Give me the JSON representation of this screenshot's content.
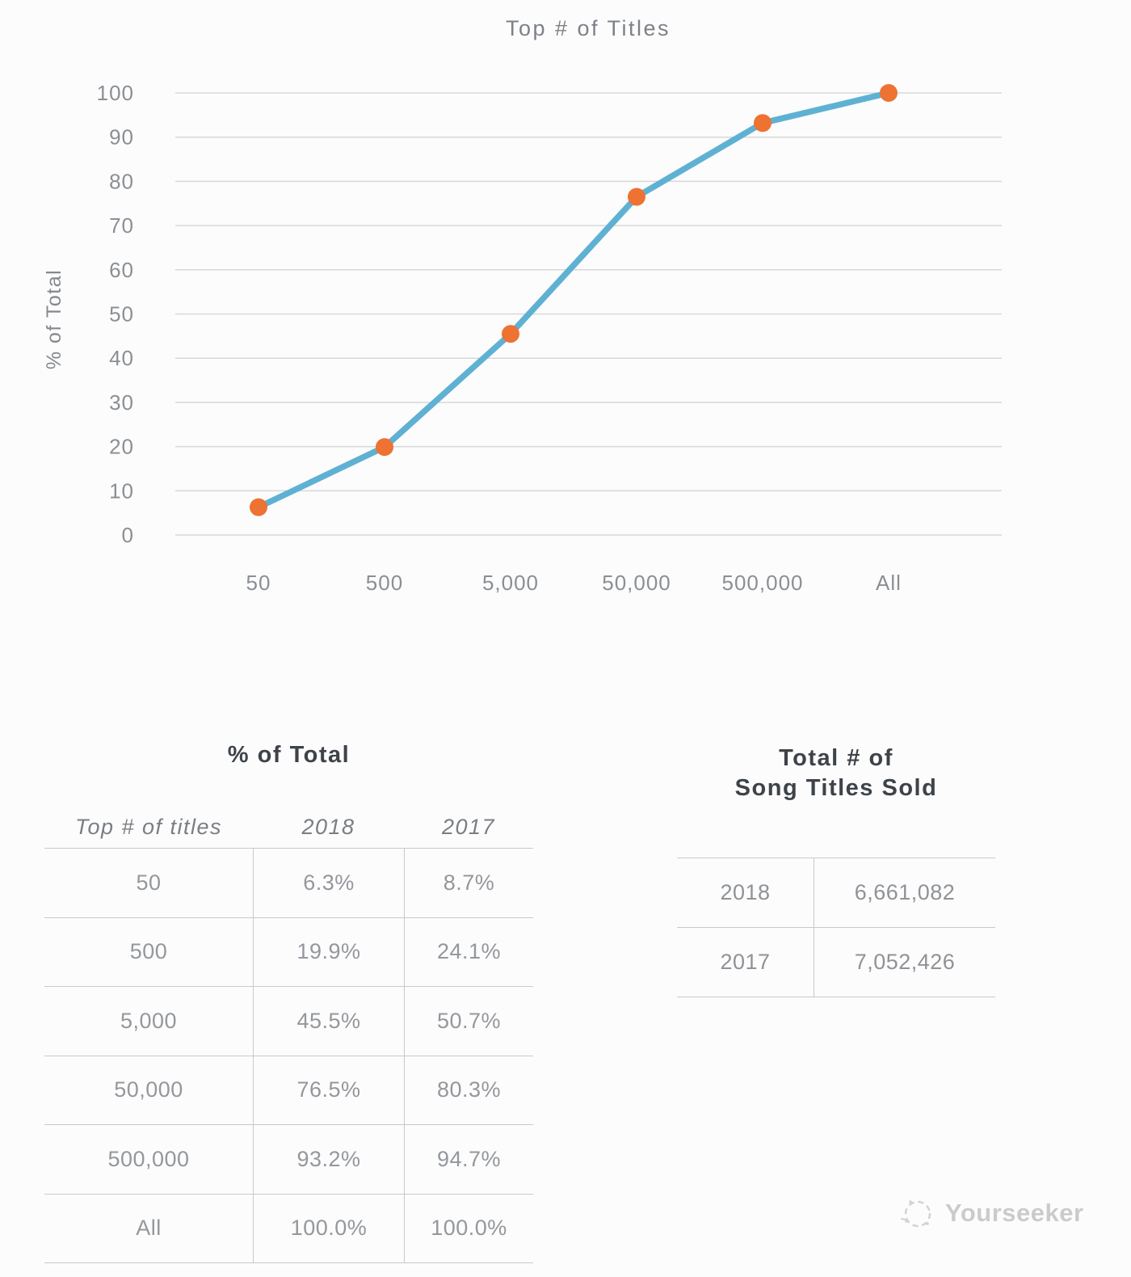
{
  "page": {
    "background": "#fcfcfc"
  },
  "chart_data": {
    "type": "line",
    "title": "Top # of Titles",
    "xlabel": "",
    "ylabel": "% of Total",
    "categories": [
      "50",
      "500",
      "5,000",
      "50,000",
      "500,000",
      "All"
    ],
    "series": [
      {
        "name": "2018",
        "values": [
          6.3,
          19.9,
          45.5,
          76.5,
          93.2,
          100.0
        ]
      }
    ],
    "ylim": [
      0,
      100
    ],
    "yticks": [
      0,
      10,
      20,
      30,
      40,
      50,
      60,
      70,
      80,
      90,
      100
    ],
    "grid": true,
    "legend": "none",
    "line_color": "#5fb1d3",
    "marker_color": "#ee7231"
  },
  "tables": {
    "pct_of_total": {
      "title": "% of Total",
      "headers": [
        "Top # of titles",
        "2018",
        "2017"
      ],
      "rows": [
        [
          "50",
          "6.3%",
          "8.7%"
        ],
        [
          "500",
          "19.9%",
          "24.1%"
        ],
        [
          "5,000",
          "45.5%",
          "50.7%"
        ],
        [
          "50,000",
          "76.5%",
          "80.3%"
        ],
        [
          "500,000",
          "93.2%",
          "94.7%"
        ],
        [
          "All",
          "100.0%",
          "100.0%"
        ]
      ]
    },
    "titles_sold": {
      "title_line1": "Total # of",
      "title_line2": "Song Titles Sold",
      "rows": [
        [
          "2018",
          "6,661,082"
        ],
        [
          "2017",
          "7,052,426"
        ]
      ]
    }
  },
  "watermark": {
    "text": "Yourseeker"
  }
}
